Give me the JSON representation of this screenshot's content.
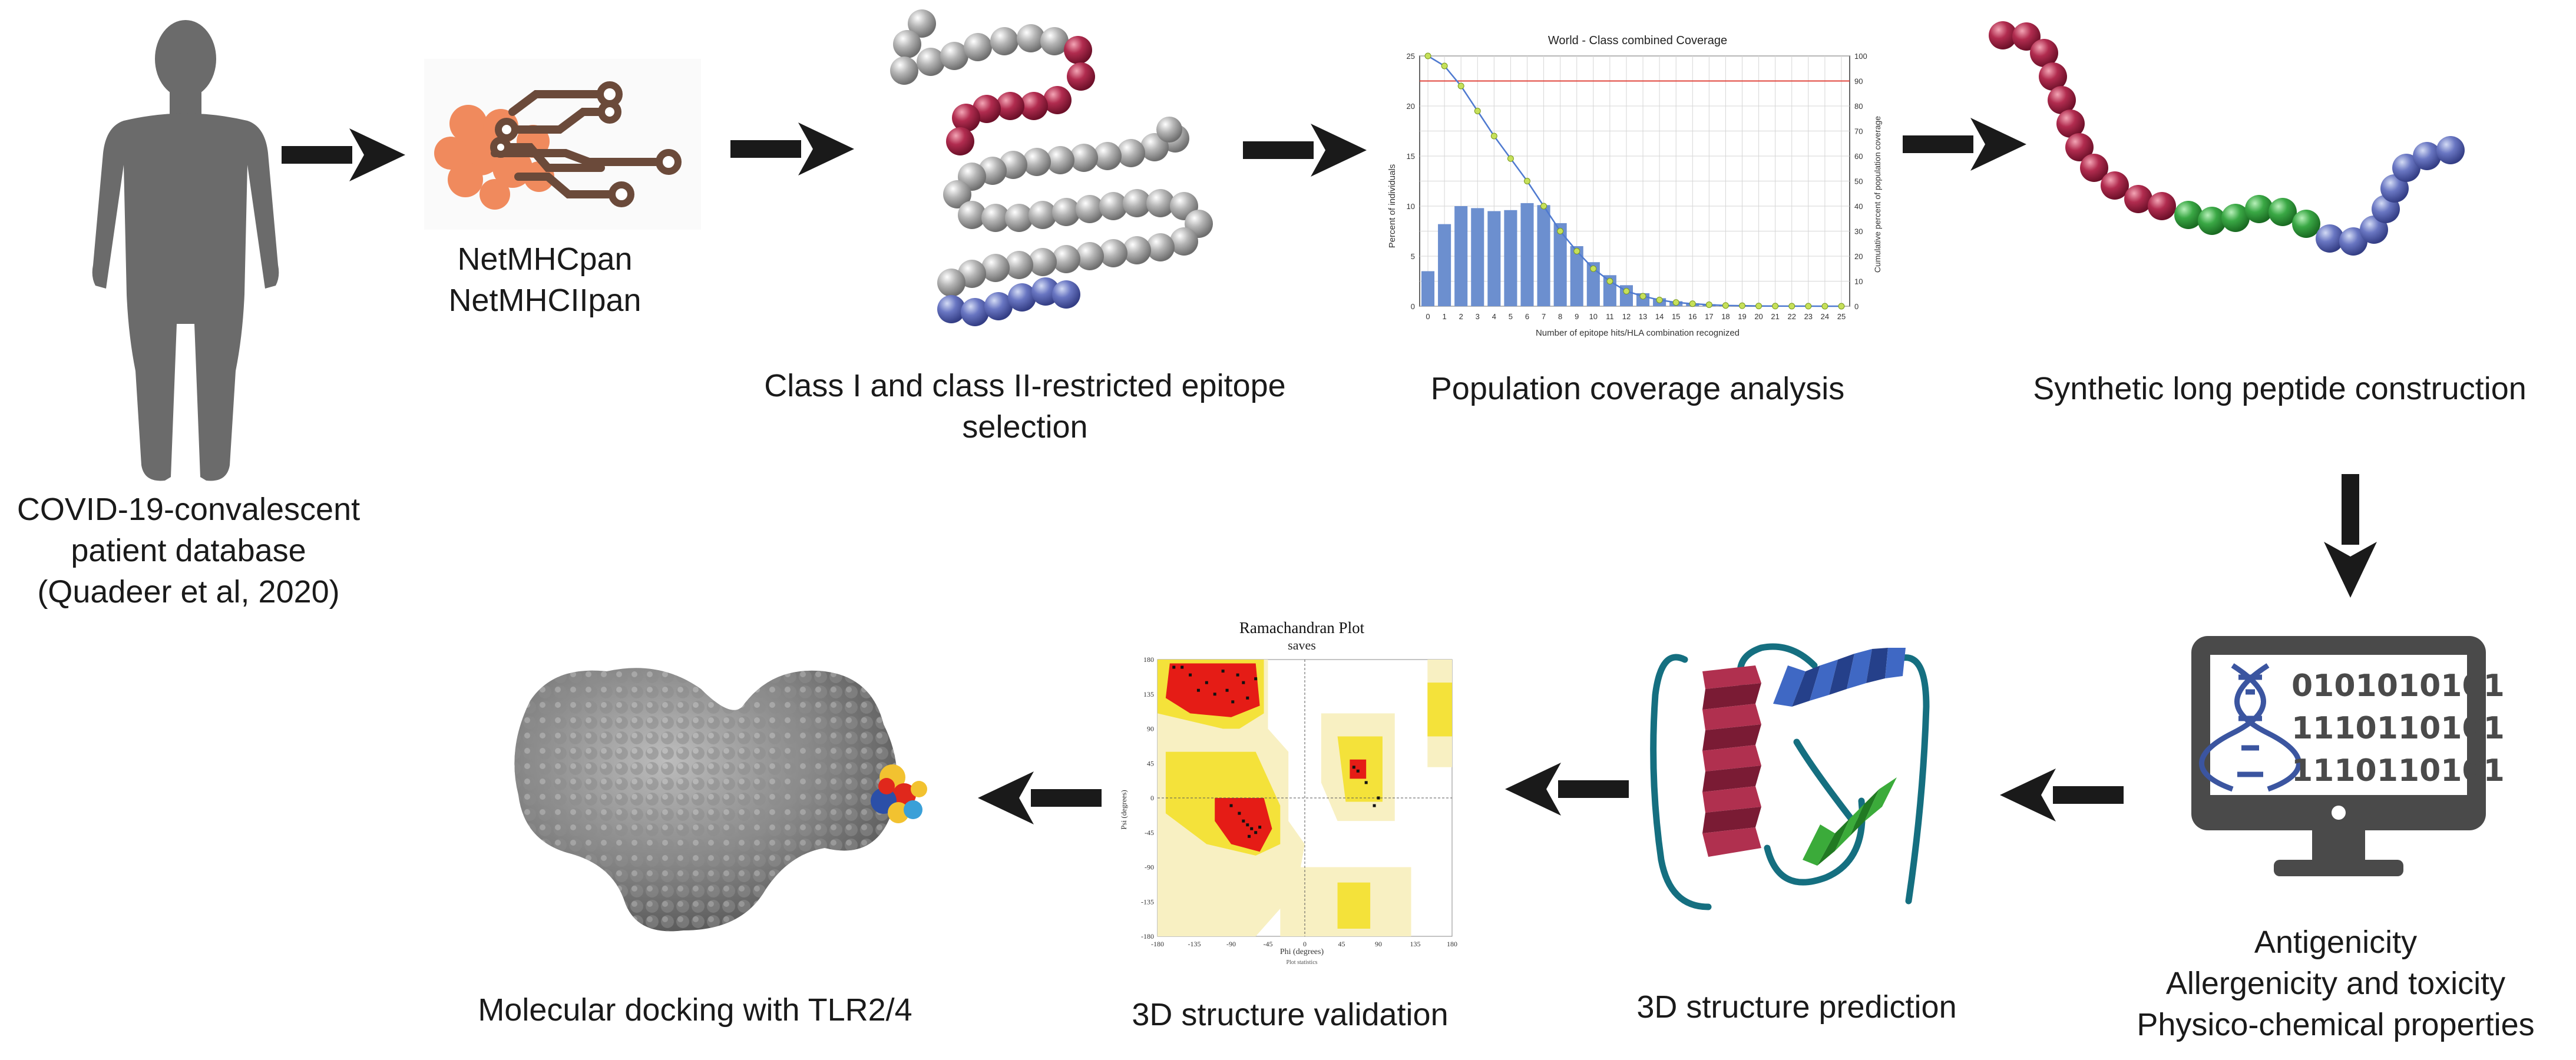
{
  "patient": {
    "caption_lines": [
      "COVID-19-convalescent",
      "patient database",
      "(Quadeer et al, 2020)"
    ]
  },
  "tools": {
    "lines": [
      "NetMHCpan",
      "NetMHCIIpan"
    ]
  },
  "epitope": {
    "caption_lines": [
      "Class I and class II-restricted epitope",
      "selection"
    ]
  },
  "coverage": {
    "caption": "Population coverage analysis"
  },
  "peptide": {
    "caption": "Synthetic long peptide construction"
  },
  "screening": {
    "binary_lines": [
      "0101010101",
      "1110110101",
      "1110110101"
    ],
    "caption_lines": [
      "Antigenicity",
      "Allergenicity and toxicity",
      "Physico-chemical properties"
    ]
  },
  "prediction": {
    "caption": "3D structure prediction"
  },
  "validation": {
    "caption": "3D structure validation"
  },
  "docking": {
    "caption": "Molecular docking with TLR2/4"
  },
  "chart_data": [
    {
      "type": "bar",
      "title": "World - Class combined Coverage",
      "xlabel": "Number of epitope hits/HLA combination recognized",
      "ylabel": "Percent of individuals",
      "y2label": "Cumulative percent of population coverage",
      "categories": [
        "0",
        "1",
        "2",
        "3",
        "4",
        "5",
        "6",
        "7",
        "8",
        "9",
        "10",
        "11",
        "12",
        "13",
        "14",
        "15",
        "16",
        "17",
        "18",
        "19",
        "20",
        "21",
        "22",
        "23",
        "24",
        "25"
      ],
      "ylim": [
        0,
        25
      ],
      "y2lim": [
        0,
        100
      ],
      "yticks": [
        "0",
        "5",
        "10",
        "15",
        "20",
        "25"
      ],
      "y2ticks": [
        "0",
        "10",
        "20",
        "30",
        "40",
        "50",
        "60",
        "70",
        "80",
        "90",
        "100"
      ],
      "series": [
        {
          "values": [
            3.5,
            8.2,
            10.0,
            9.8,
            9.5,
            9.6,
            10.3,
            10.1,
            8.3,
            6.0,
            4.4,
            3.1,
            2.1,
            1.3,
            0.8,
            0.5,
            0.3,
            0.2,
            0.1,
            0.1,
            0.05,
            0.03,
            0.02,
            0.01,
            0.01,
            0.0
          ]
        },
        {
          "values": [
            100,
            96,
            88,
            78,
            68,
            59,
            50,
            40,
            30,
            22,
            15,
            10,
            6,
            4,
            2.5,
            1.5,
            1,
            0.6,
            0.3,
            0.2,
            0.1,
            0.05,
            0.03,
            0.02,
            0.01,
            0
          ]
        }
      ],
      "reference_line": 90
    },
    {
      "type": "scatter",
      "title": "Ramachandran Plot",
      "subtitle": "saves",
      "xlabel": "Phi (degrees)",
      "ylabel": "Psi (degrees)",
      "footer": "Plot statistics",
      "xlim": [
        -180,
        180
      ],
      "ylim": [
        -180,
        180
      ],
      "xticks": [
        "-180",
        "-135",
        "-90",
        "-45",
        "0",
        "45",
        "90",
        "135",
        "180"
      ],
      "yticks": [
        "180",
        "135",
        "90",
        "45",
        "0",
        "-45",
        "-90",
        "-135",
        "-180"
      ],
      "points": [
        [
          -75,
          150
        ],
        [
          -82,
          160
        ],
        [
          -95,
          140
        ],
        [
          -110,
          135
        ],
        [
          -60,
          155
        ],
        [
          -140,
          160
        ],
        [
          -120,
          150
        ],
        [
          -70,
          130
        ],
        [
          -100,
          165
        ],
        [
          -88,
          125
        ],
        [
          -130,
          140
        ],
        [
          -150,
          170
        ],
        [
          -65,
          -40
        ],
        [
          -70,
          -35
        ],
        [
          -60,
          -45
        ],
        [
          -75,
          -30
        ],
        [
          -68,
          -50
        ],
        [
          -80,
          -20
        ],
        [
          -55,
          -38
        ],
        [
          -90,
          -10
        ],
        [
          60,
          40
        ],
        [
          65,
          35
        ],
        [
          75,
          20
        ],
        [
          90,
          0
        ],
        [
          85,
          -10
        ],
        [
          -160,
          170
        ]
      ]
    }
  ]
}
